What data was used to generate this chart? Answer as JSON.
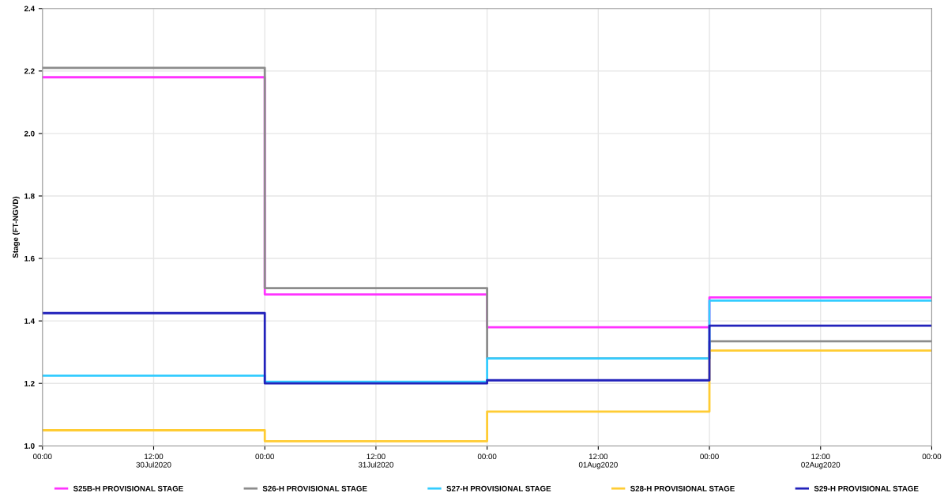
{
  "chart_data": {
    "type": "step",
    "ylabel": "Stage (FT-NGVD)",
    "x": [
      "2020-07-30T00:00",
      "2020-07-31T00:00",
      "2020-08-01T00:00",
      "2020-08-02T00:00",
      "2020-08-03T00:00"
    ],
    "series": [
      {
        "name": "S25B-H PROVISIONAL STAGE",
        "color": "#ff33ff",
        "values": [
          2.18,
          1.485,
          1.38,
          1.475,
          1.475
        ]
      },
      {
        "name": "S26-H PROVISIONAL STAGE",
        "color": "#8c8c8c",
        "values": [
          2.21,
          1.505,
          1.28,
          1.335,
          1.335
        ]
      },
      {
        "name": "S27-H PROVISIONAL STAGE",
        "color": "#33ccff",
        "values": [
          1.225,
          1.205,
          1.28,
          1.465,
          1.465
        ]
      },
      {
        "name": "S28-H PROVISIONAL STAGE",
        "color": "#ffcc33",
        "values": [
          1.05,
          1.015,
          1.11,
          1.305,
          1.305
        ]
      },
      {
        "name": "S29-H PROVISIONAL STAGE",
        "color": "#2222bb",
        "values": [
          1.425,
          1.2,
          1.21,
          1.385,
          1.385
        ]
      }
    ],
    "xlim": [
      "2020-07-30T00:00",
      "2020-08-03T00:00"
    ],
    "xticks": [
      {
        "value": "2020-07-30T00:00",
        "label": "00:00"
      },
      {
        "value": "2020-07-30T12:00",
        "label": "12:00\n30Jul2020"
      },
      {
        "value": "2020-07-31T00:00",
        "label": "00:00"
      },
      {
        "value": "2020-07-31T12:00",
        "label": "12:00\n31Jul2020"
      },
      {
        "value": "2020-08-01T00:00",
        "label": "00:00"
      },
      {
        "value": "2020-08-01T12:00",
        "label": "12:00\n01Aug2020"
      },
      {
        "value": "2020-08-02T00:00",
        "label": "00:00"
      },
      {
        "value": "2020-08-02T12:00",
        "label": "12:00\n02Aug2020"
      },
      {
        "value": "2020-08-03T00:00",
        "label": "00:00"
      }
    ],
    "ylim": [
      1.0,
      2.4
    ],
    "yticks": [
      {
        "value": 1.0,
        "label": "1.0"
      },
      1.2,
      1.4,
      1.6,
      1.8,
      {
        "value": 2.0,
        "label": "2.0"
      },
      2.2,
      2.4
    ],
    "grid": true,
    "legend": "bottom",
    "line_style": "solid",
    "marker": "none"
  }
}
